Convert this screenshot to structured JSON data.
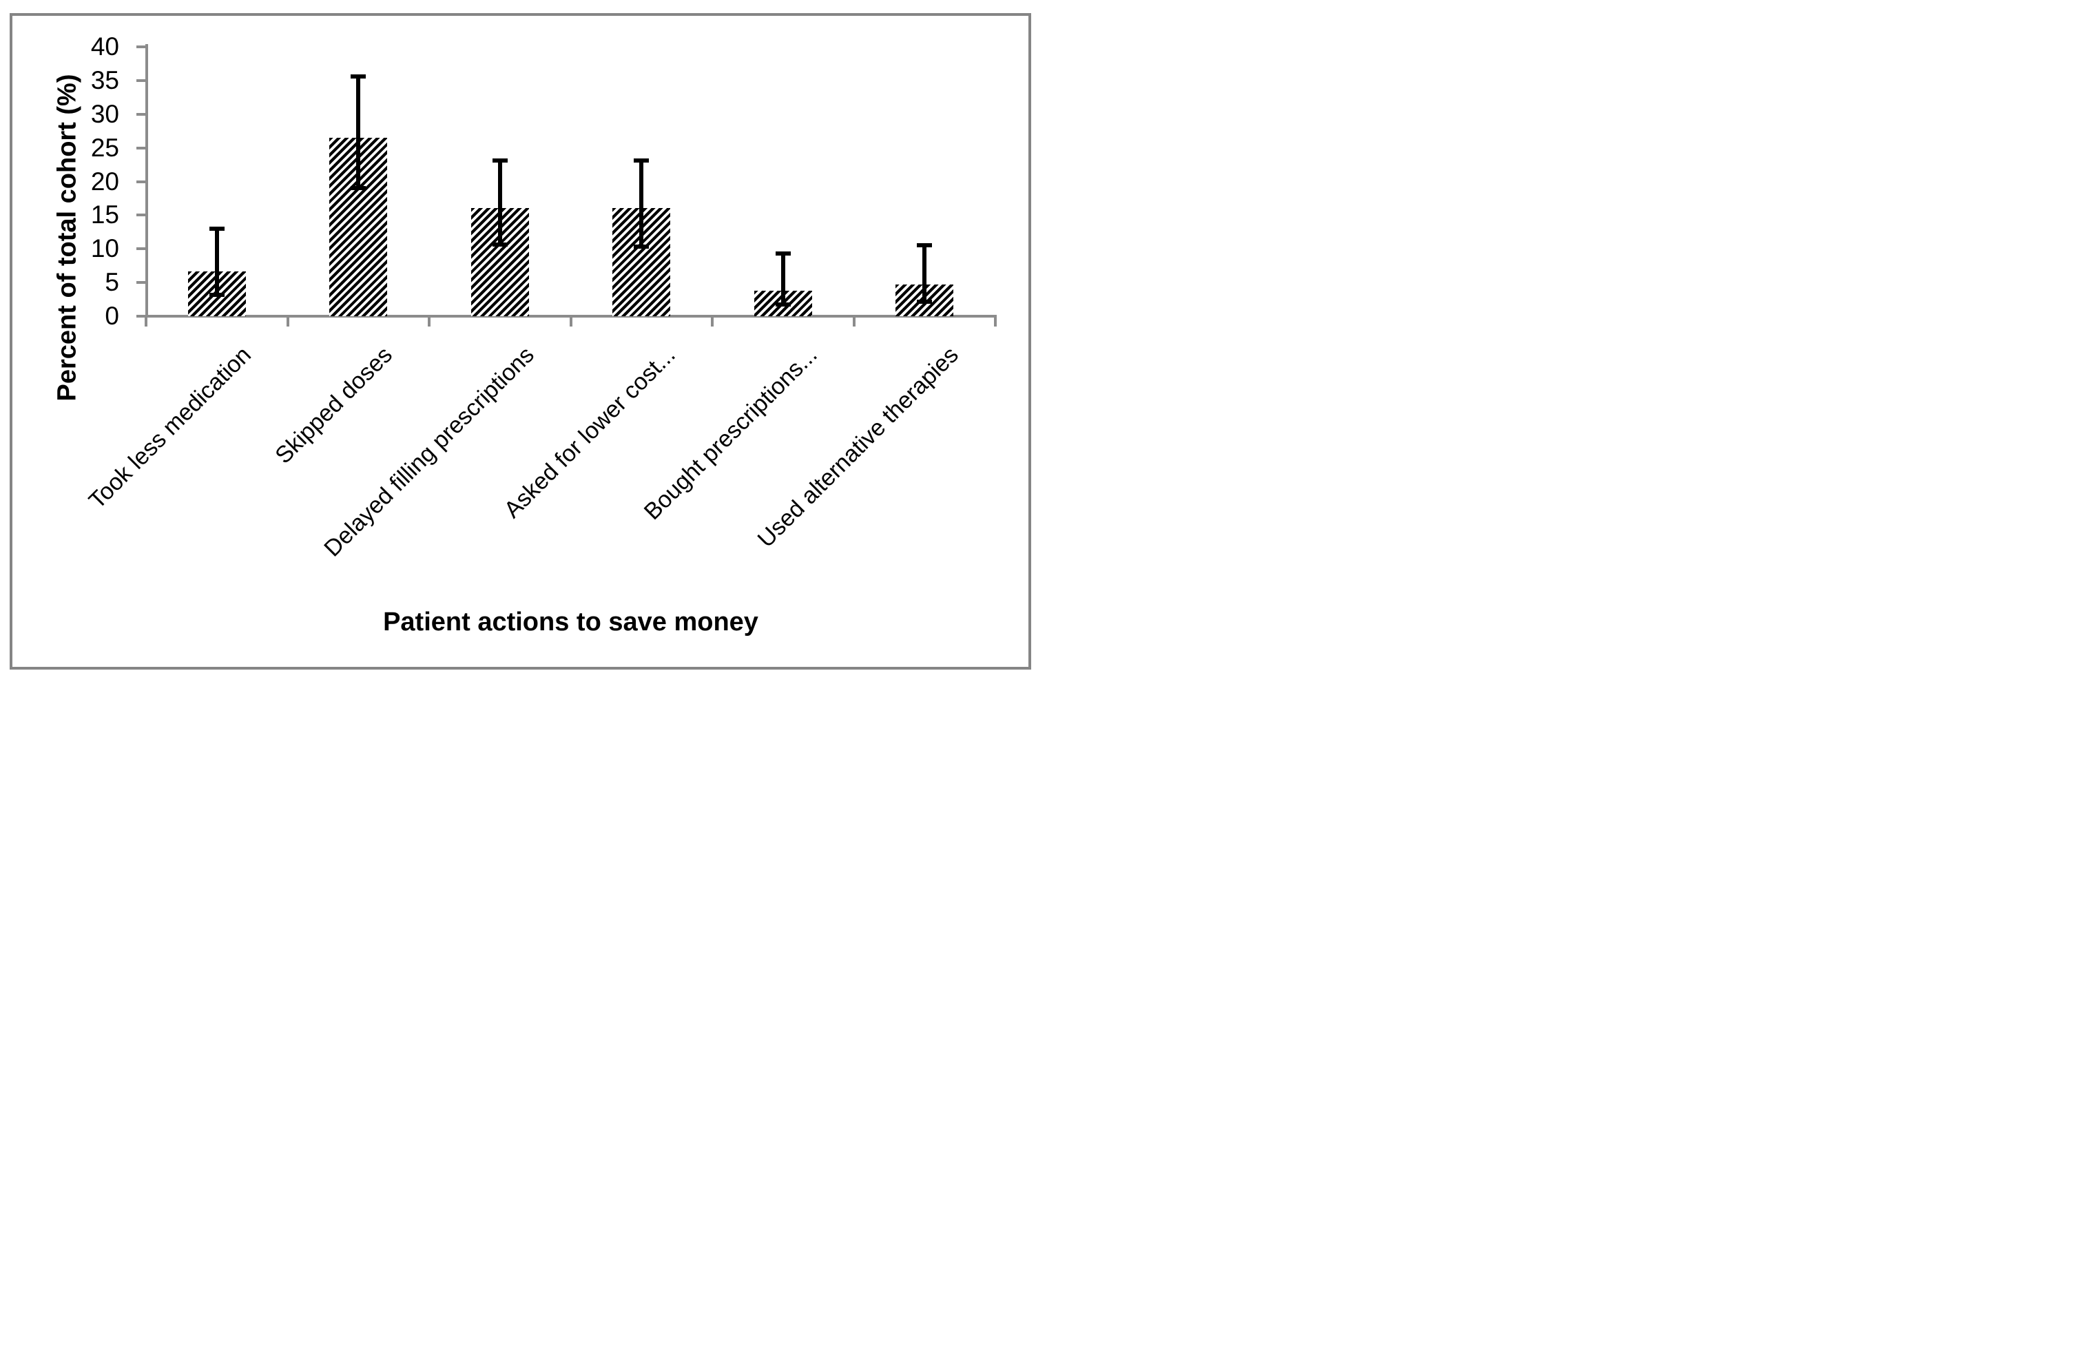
{
  "chart_data": {
    "type": "bar",
    "title": "",
    "xlabel": "Patient actions to save money",
    "ylabel": "Percent of total cohort (%)",
    "categories": [
      "Took less medication",
      "Skipped doses",
      "Delayed filling prescriptions",
      "Asked for lower cost...",
      "Bought prescriptions...",
      "Used alternative therapies"
    ],
    "values": [
      6.6,
      26.5,
      16.1,
      16.1,
      3.8,
      4.7
    ],
    "error_low": [
      3.2,
      19.0,
      10.6,
      10.3,
      1.7,
      2.1
    ],
    "error_high": [
      13.0,
      35.6,
      23.1,
      23.1,
      9.3,
      10.5
    ],
    "ylim": [
      0,
      40
    ],
    "yticks": [
      0,
      5,
      10,
      15,
      20,
      25,
      30,
      35,
      40
    ],
    "grid": "off",
    "legend": "none",
    "bar_fill": "black-diagonal-hatch",
    "bar_color": "#000000",
    "axis_color": "#8c8c8c",
    "frame_color": "#858585",
    "background_color": "#ffffff"
  }
}
